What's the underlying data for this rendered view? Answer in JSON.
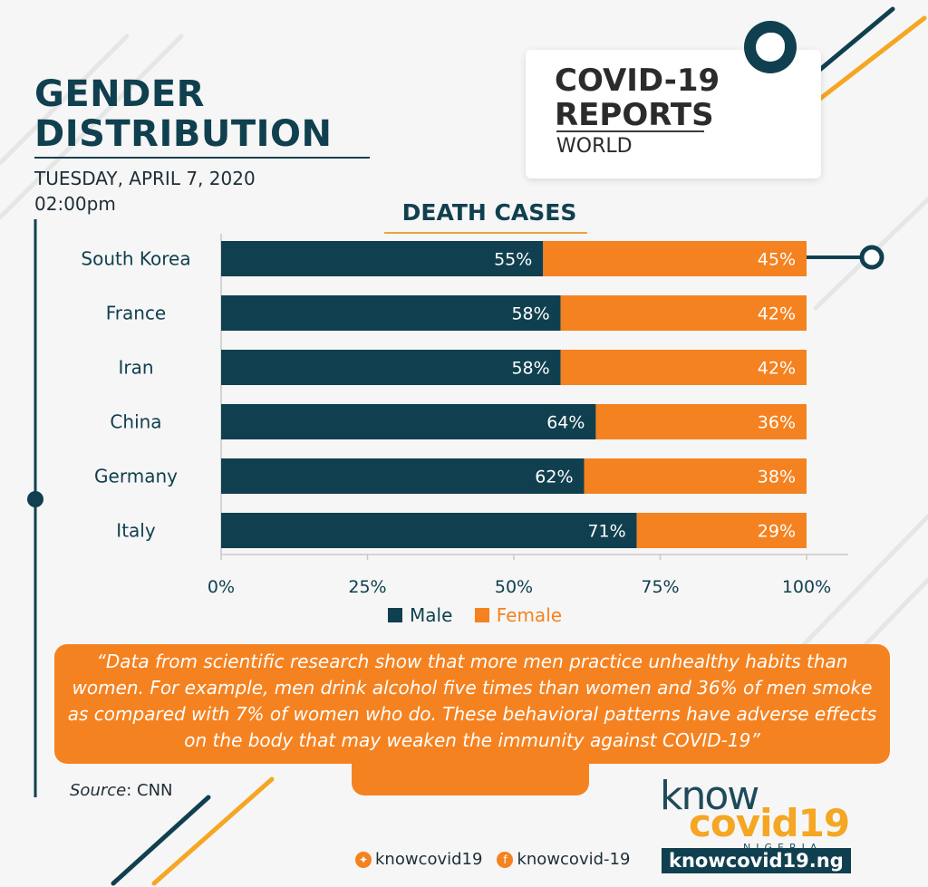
{
  "header": {
    "title_line1": "GENDER",
    "title_line2": "DISTRIBUTION",
    "date": "TUESDAY, APRIL 7, 2020",
    "time": "02:00pm"
  },
  "report_card": {
    "line1": "COVID-19",
    "line2": "REPORTS",
    "line3": "WORLD"
  },
  "chart_data": {
    "type": "bar",
    "orientation": "horizontal",
    "stacked": true,
    "title": "DEATH CASES",
    "categories": [
      "South Korea",
      "France",
      "Iran",
      "China",
      "Germany",
      "Italy"
    ],
    "series": [
      {
        "name": "Male",
        "values": [
          55,
          58,
          58,
          64,
          62,
          71
        ],
        "labels": [
          "55%",
          "58%",
          "58%",
          "64%",
          "62%",
          "71%"
        ],
        "color": "#10404f"
      },
      {
        "name": "Female",
        "values": [
          45,
          42,
          42,
          36,
          38,
          29
        ],
        "labels": [
          "45%",
          "42%",
          "42%",
          "36%",
          "38%",
          "29%"
        ],
        "color": "#f58220"
      }
    ],
    "xlim": [
      0,
      100
    ],
    "xticks": [
      "0%",
      "25%",
      "50%",
      "75%",
      "100%"
    ],
    "grid": true,
    "legend": "bottom"
  },
  "quote": "“Data from scientific research show that more men practice unhealthy habits than women. For example, men drink alcohol five times than women and 36% of men smoke as compared with 7% of women who do. These behavioral patterns have adverse effects on the body that may weaken the immunity against COVID-19”",
  "source": {
    "label": "Source",
    "value": "CNN"
  },
  "brand": {
    "know": "know",
    "covid": "covid19",
    "country": "NIGERIA",
    "twitter": "knowcovid19",
    "facebook": "knowcovid-19",
    "website": "knowcovid19.ng"
  },
  "colors": {
    "navy": "#10404f",
    "orange": "#f58220",
    "yellow": "#f5a623"
  }
}
